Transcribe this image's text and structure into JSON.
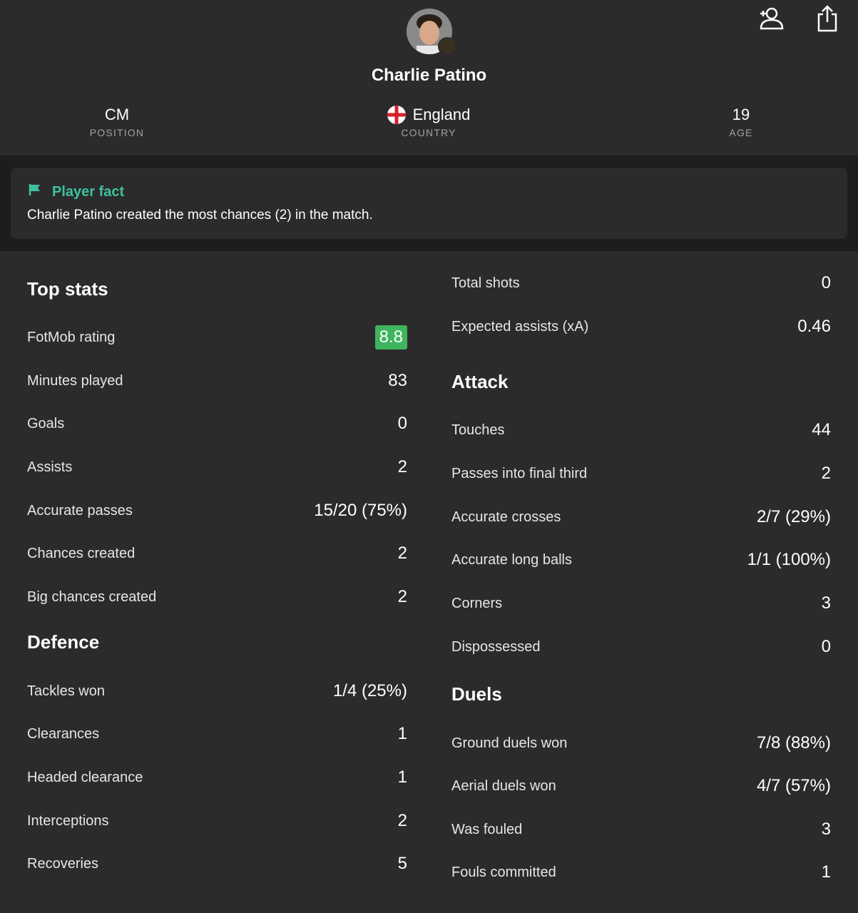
{
  "player": {
    "name": "Charlie Patino",
    "position_value": "CM",
    "position_label": "POSITION",
    "country_value": "England",
    "country_label": "COUNTRY",
    "age_value": "19",
    "age_label": "AGE"
  },
  "icons": {
    "follow": "person-add-icon",
    "share": "share-icon",
    "flag": "flag-icon",
    "country_flag": "england-flag-icon"
  },
  "colors": {
    "background": "#1d1d1d",
    "panel": "#2b2b2b",
    "accent": "#3fc2a0",
    "rating": "#3fb55e",
    "label": "#a3a3a3"
  },
  "fact": {
    "title": "Player fact",
    "text": "Charlie Patino created the most chances (2) in the match."
  },
  "left": {
    "top_stats": {
      "title": "Top stats",
      "rows": [
        {
          "label": "FotMob rating",
          "value": "8.8"
        },
        {
          "label": "Minutes played",
          "value": "83"
        },
        {
          "label": "Goals",
          "value": "0"
        },
        {
          "label": "Assists",
          "value": "2"
        },
        {
          "label": "Accurate passes",
          "value": "15/20 (75%)"
        },
        {
          "label": "Chances created",
          "value": "2"
        },
        {
          "label": "Big chances created",
          "value": "2"
        }
      ]
    },
    "defence": {
      "title": "Defence",
      "rows": [
        {
          "label": "Tackles won",
          "value": "1/4 (25%)"
        },
        {
          "label": "Clearances",
          "value": "1"
        },
        {
          "label": "Headed clearance",
          "value": "1"
        },
        {
          "label": "Interceptions",
          "value": "2"
        },
        {
          "label": "Recoveries",
          "value": "5"
        }
      ]
    }
  },
  "right": {
    "top_stats_cont": {
      "rows": [
        {
          "label": "Total shots",
          "value": "0"
        },
        {
          "label": "Expected assists (xA)",
          "value": "0.46"
        }
      ]
    },
    "attack": {
      "title": "Attack",
      "rows": [
        {
          "label": "Touches",
          "value": "44"
        },
        {
          "label": "Passes into final third",
          "value": "2"
        },
        {
          "label": "Accurate crosses",
          "value": "2/7 (29%)"
        },
        {
          "label": "Accurate long balls",
          "value": "1/1 (100%)"
        },
        {
          "label": "Corners",
          "value": "3"
        },
        {
          "label": "Dispossessed",
          "value": "0"
        }
      ]
    },
    "duels": {
      "title": "Duels",
      "rows": [
        {
          "label": "Ground duels won",
          "value": "7/8 (88%)"
        },
        {
          "label": "Aerial duels won",
          "value": "4/7 (57%)"
        },
        {
          "label": "Was fouled",
          "value": "3"
        },
        {
          "label": "Fouls committed",
          "value": "1"
        }
      ]
    }
  }
}
